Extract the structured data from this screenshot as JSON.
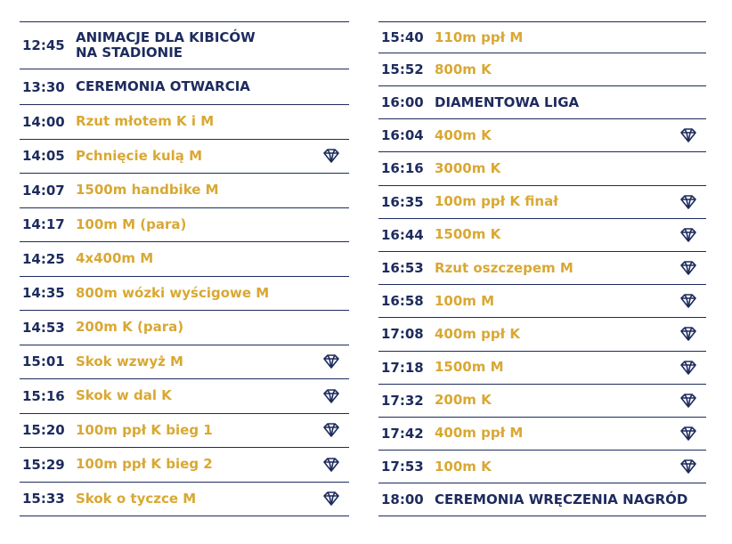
{
  "navy": "#1d2b5e",
  "gold": "#d9a833",
  "columns": [
    {
      "rows": [
        {
          "time": "12:45",
          "event": "ANIMACJE DLA KIBICÓW\nNA STADIONIE",
          "color": "#1d2b5e",
          "diamond": false
        },
        {
          "time": "13:30",
          "event": "CEREMONIA OTWARCIA",
          "color": "#1d2b5e",
          "diamond": false
        },
        {
          "time": "14:00",
          "event": "Rzut młotem K i M",
          "color": "#d9a833",
          "diamond": false
        },
        {
          "time": "14:05",
          "event": "Pchnięcie kulą M",
          "color": "#d9a833",
          "diamond": true
        },
        {
          "time": "14:07",
          "event": "1500m handbike M",
          "color": "#d9a833",
          "diamond": false
        },
        {
          "time": "14:17",
          "event": "100m M (para)",
          "color": "#d9a833",
          "diamond": false
        },
        {
          "time": "14:25",
          "event": "4x400m M",
          "color": "#d9a833",
          "diamond": false
        },
        {
          "time": "14:35",
          "event": "800m wózki wyścigowe M",
          "color": "#d9a833",
          "diamond": false
        },
        {
          "time": "14:53",
          "event": "200m K (para)",
          "color": "#d9a833",
          "diamond": false
        },
        {
          "time": "15:01",
          "event": "Skok wzwyż M",
          "color": "#d9a833",
          "diamond": true
        },
        {
          "time": "15:16",
          "event": "Skok w dal K",
          "color": "#d9a833",
          "diamond": true
        },
        {
          "time": "15:20",
          "event": "100m ppł K bieg 1",
          "color": "#d9a833",
          "diamond": true
        },
        {
          "time": "15:29",
          "event": "100m ppł K bieg 2",
          "color": "#d9a833",
          "diamond": true
        },
        {
          "time": "15:33",
          "event": "Skok o tyczce M",
          "color": "#d9a833",
          "diamond": true
        }
      ]
    },
    {
      "rows": [
        {
          "time": "15:40",
          "event": "110m ppł M",
          "color": "#d9a833",
          "diamond": false
        },
        {
          "time": "15:52",
          "event": "800m K",
          "color": "#d9a833",
          "diamond": false
        },
        {
          "time": "16:00",
          "event": "DIAMENTOWA LIGA",
          "color": "#1d2b5e",
          "diamond": false
        },
        {
          "time": "16:04",
          "event": "400m K",
          "color": "#d9a833",
          "diamond": true
        },
        {
          "time": "16:16",
          "event": "3000m K",
          "color": "#d9a833",
          "diamond": false
        },
        {
          "time": "16:35",
          "event": "100m ppł K finał",
          "color": "#d9a833",
          "diamond": true
        },
        {
          "time": "16:44",
          "event": "1500m K",
          "color": "#d9a833",
          "diamond": true
        },
        {
          "time": "16:53",
          "event": "Rzut oszczepem M",
          "color": "#d9a833",
          "diamond": true
        },
        {
          "time": "16:58",
          "event": "100m M",
          "color": "#d9a833",
          "diamond": true
        },
        {
          "time": "17:08",
          "event": "400m ppł K",
          "color": "#d9a833",
          "diamond": true
        },
        {
          "time": "17:18",
          "event": "1500m M",
          "color": "#d9a833",
          "diamond": true
        },
        {
          "time": "17:32",
          "event": "200m K",
          "color": "#d9a833",
          "diamond": true
        },
        {
          "time": "17:42",
          "event": "400m ppł M",
          "color": "#d9a833",
          "diamond": true
        },
        {
          "time": "17:53",
          "event": "100m K",
          "color": "#d9a833",
          "diamond": true
        },
        {
          "time": "18:00",
          "event": "CEREMONIA WRĘCZENIA NAGRÓD",
          "color": "#1d2b5e",
          "diamond": false
        }
      ]
    }
  ]
}
